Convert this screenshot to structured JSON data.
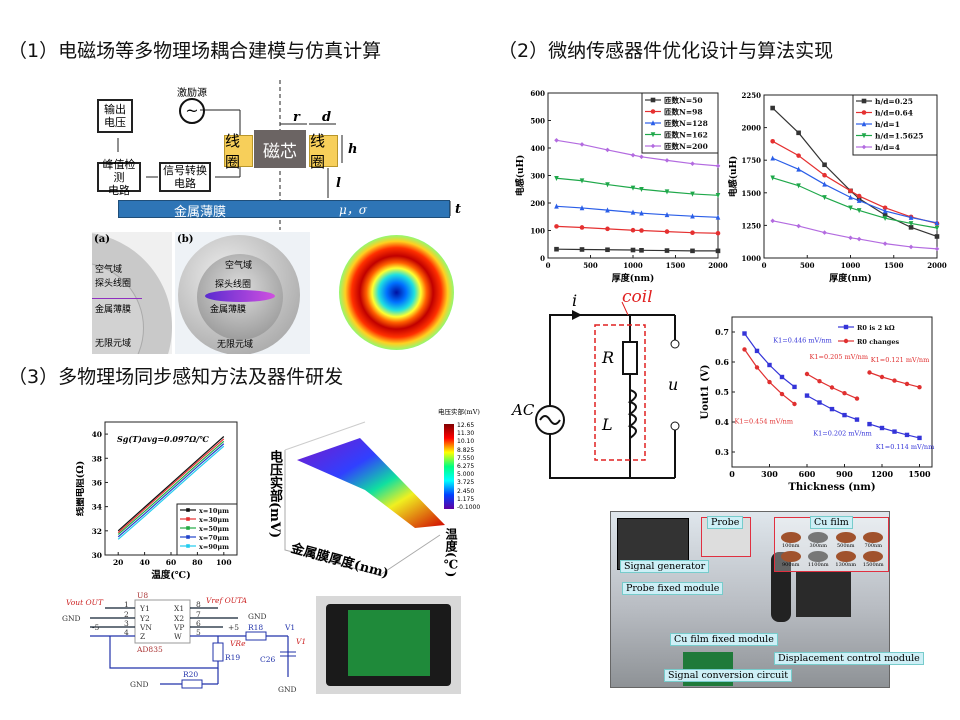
{
  "headings": {
    "s1": "（1）电磁场等多物理场耦合建模与仿真计算",
    "s2": "（2）微纳传感器件优化设计与算法实现",
    "s3": "（3）多物理场同步感知方法及器件研发"
  },
  "diagram1": {
    "source": "激励源",
    "output": "输出\n电压",
    "peak": "峰值检测\n电路",
    "signal": "信号转换\n电路",
    "coil": "线圈",
    "core": "磁芯",
    "film": "金属薄膜",
    "film_params": "μ，σ",
    "r": "r",
    "d": "d",
    "h": "h",
    "l": "l",
    "t": "t"
  },
  "sim": {
    "a": "(a)",
    "b": "(b)",
    "air": "空气域",
    "probe": "探头线圈",
    "film": "金属薄膜",
    "infinite": "无限元域"
  },
  "circuit": {
    "i": "i",
    "coil": "coil",
    "R": "R",
    "L": "L",
    "AC": "AC",
    "u": "u"
  },
  "surface3d": {
    "colorbar_title": "电压实部(mV)",
    "colorbar_ticks": [
      "12.65",
      "11.30",
      "10.10",
      "8.825",
      "7.550",
      "6.275",
      "5.000",
      "3.725",
      "2.450",
      "1.175",
      "-0.1000"
    ],
    "zlabel": "电压实部(mV)",
    "xlabel": "金属膜厚度(nm)",
    "ylabel": "温度(℃)"
  },
  "schematic": {
    "u8": "U8",
    "chip": "AD835",
    "pins_left": [
      "Y1",
      "Y2",
      "VN",
      "Z"
    ],
    "pins_right": [
      "X1",
      "X2",
      "VP",
      "W"
    ],
    "nums_left": [
      "1",
      "2",
      "3",
      "4"
    ],
    "nums_right": [
      "8",
      "7",
      "6",
      "5"
    ],
    "vout": "Vout OUT",
    "vref": "Vref OUTA",
    "gnd": "GND",
    "m5": "-5",
    "p5": "+5",
    "vre": "VRe",
    "r18": "R18",
    "r19": "R19",
    "r20": "R20",
    "c26": "C26",
    "v1": "V1",
    "V1": "V1"
  },
  "photo": {
    "labels": [
      "Signal generator",
      "Probe",
      "Cu film",
      "Probe fixed module",
      "Cu film fixed module",
      "Displacement control module",
      "Signal conversion circuit"
    ],
    "films": [
      "100nm",
      "300nm",
      "500nm",
      "700nm",
      "900nm",
      "1100nm",
      "1300nm",
      "1500nm"
    ]
  },
  "chart_data": [
    {
      "type": "line",
      "xlabel": "厚度(nm)",
      "ylabel": "电感(uH)",
      "xlim": [
        0,
        2000
      ],
      "ylim": [
        0,
        600
      ],
      "xticks": [
        0,
        500,
        1000,
        1500,
        2000
      ],
      "yticks": [
        0,
        100,
        200,
        300,
        400,
        500,
        600
      ],
      "legend": "top-right",
      "x": [
        100,
        400,
        700,
        1000,
        1100,
        1400,
        1700,
        2000
      ],
      "series": [
        {
          "name": "匝数N=50",
          "color": "#333333",
          "marker": "square",
          "values": [
            32,
            31,
            30,
            29,
            28,
            27,
            26,
            26
          ]
        },
        {
          "name": "匝数N=98",
          "color": "#e53030",
          "marker": "circle",
          "values": [
            115,
            111,
            106,
            101,
            100,
            96,
            92,
            90
          ]
        },
        {
          "name": "匝数N=128",
          "color": "#2a5ee8",
          "marker": "tri-up",
          "values": [
            188,
            182,
            174,
            166,
            163,
            157,
            152,
            148
          ]
        },
        {
          "name": "匝数N=162",
          "color": "#1fa84a",
          "marker": "tri-down",
          "values": [
            290,
            281,
            267,
            255,
            250,
            241,
            233,
            228
          ]
        },
        {
          "name": "匝数N=200",
          "color": "#b36be0",
          "marker": "diamond",
          "values": [
            428,
            413,
            393,
            374,
            368,
            355,
            343,
            335
          ]
        }
      ]
    },
    {
      "type": "line",
      "xlabel": "厚度(nm)",
      "ylabel": "电感(uH)",
      "xlim": [
        0,
        2000
      ],
      "ylim": [
        1000,
        2250
      ],
      "xticks": [
        0,
        500,
        1000,
        1500,
        2000
      ],
      "yticks": [
        1000,
        1250,
        1500,
        1750,
        2000,
        2250
      ],
      "legend": "top-right",
      "x": [
        100,
        400,
        700,
        1000,
        1100,
        1400,
        1700,
        2000
      ],
      "series": [
        {
          "name": "h/d=0.25",
          "color": "#333333",
          "marker": "square",
          "values": [
            2150,
            1960,
            1715,
            1515,
            1455,
            1330,
            1235,
            1165
          ]
        },
        {
          "name": "h/d=0.64",
          "color": "#e53030",
          "marker": "circle",
          "values": [
            1895,
            1785,
            1635,
            1515,
            1475,
            1385,
            1315,
            1265
          ]
        },
        {
          "name": "h/d=1",
          "color": "#2a5ee8",
          "marker": "tri-up",
          "values": [
            1765,
            1680,
            1565,
            1465,
            1440,
            1360,
            1310,
            1270
          ]
        },
        {
          "name": "h/d=1.5625",
          "color": "#1fa84a",
          "marker": "tri-down",
          "values": [
            1615,
            1555,
            1465,
            1385,
            1365,
            1305,
            1265,
            1230
          ]
        },
        {
          "name": "h/d=4",
          "color": "#b36be0",
          "marker": "diamond",
          "values": [
            1285,
            1245,
            1195,
            1155,
            1145,
            1110,
            1085,
            1070
          ]
        }
      ]
    },
    {
      "type": "line",
      "xlabel": "Thickness (nm)",
      "ylabel": "Uout1 (V)",
      "xlim": [
        0,
        1600
      ],
      "ylim": [
        0.25,
        0.75
      ],
      "xticks": [
        0,
        300,
        600,
        900,
        1200,
        1500
      ],
      "yticks": [
        0.3,
        0.4,
        0.5,
        0.6,
        0.7
      ],
      "legend": "top-right",
      "series": [
        {
          "name": "R0 is 2 kΩ",
          "color": "#3434d8",
          "marker": "square",
          "segments": [
            [
              [
                100,
                0.695
              ],
              [
                200,
                0.637
              ],
              [
                300,
                0.59
              ],
              [
                400,
                0.55
              ],
              [
                500,
                0.517
              ]
            ],
            [
              [
                600,
                0.488
              ],
              [
                700,
                0.465
              ],
              [
                800,
                0.443
              ],
              [
                900,
                0.423
              ],
              [
                1000,
                0.408
              ]
            ],
            [
              [
                1100,
                0.393
              ],
              [
                1200,
                0.38
              ],
              [
                1300,
                0.368
              ],
              [
                1400,
                0.357
              ],
              [
                1500,
                0.347
              ]
            ]
          ]
        },
        {
          "name": "R0 changes",
          "color": "#e03030",
          "marker": "circle",
          "segments": [
            [
              [
                100,
                0.642
              ],
              [
                200,
                0.582
              ],
              [
                300,
                0.533
              ],
              [
                400,
                0.493
              ],
              [
                500,
                0.46
              ]
            ],
            [
              [
                600,
                0.56
              ],
              [
                700,
                0.536
              ],
              [
                800,
                0.515
              ],
              [
                900,
                0.496
              ],
              [
                1000,
                0.478
              ]
            ],
            [
              [
                1100,
                0.565
              ],
              [
                1200,
                0.55
              ],
              [
                1300,
                0.538
              ],
              [
                1400,
                0.527
              ],
              [
                1500,
                0.516
              ]
            ]
          ]
        }
      ],
      "annotations": [
        {
          "text": "K1=0.446 mV/nm",
          "color": "#3434d8",
          "x": 330,
          "y": 0.665
        },
        {
          "text": "K1=0.454 mV/nm",
          "color": "#e03030",
          "x": 20,
          "y": 0.395
        },
        {
          "text": "K1=0.205 mV/nm",
          "color": "#e03030",
          "x": 620,
          "y": 0.61
        },
        {
          "text": "K1=0.202 mV/nm",
          "color": "#3434d8",
          "x": 650,
          "y": 0.355
        },
        {
          "text": "K1=0.121 mV/nm",
          "color": "#e03030",
          "x": 1110,
          "y": 0.6
        },
        {
          "text": "K1=0.114 mV/nm",
          "color": "#3434d8",
          "x": 1150,
          "y": 0.31
        }
      ]
    },
    {
      "type": "line",
      "xlabel": "温度(℃)",
      "ylabel": "线圈电阻(Ω)",
      "xlim": [
        10,
        110
      ],
      "ylim": [
        30,
        41
      ],
      "xticks": [
        20,
        40,
        60,
        80,
        100
      ],
      "yticks": [
        30,
        32,
        34,
        36,
        38,
        40
      ],
      "legend": "bottom-right",
      "annotation": "Sg(T)avg=0.097Ω/℃",
      "x": [
        20,
        40,
        60,
        80,
        100
      ],
      "series": [
        {
          "name": "x=10μm",
          "color": "#111111",
          "values": [
            32.0,
            33.95,
            35.9,
            37.85,
            39.8
          ]
        },
        {
          "name": "x=30μm",
          "color": "#e53030",
          "values": [
            31.85,
            33.8,
            35.75,
            37.7,
            39.6
          ]
        },
        {
          "name": "x=50μm",
          "color": "#22aa44",
          "values": [
            31.7,
            33.6,
            35.55,
            37.5,
            39.4
          ]
        },
        {
          "name": "x=70μm",
          "color": "#2244cc",
          "values": [
            31.5,
            33.4,
            35.35,
            37.3,
            39.2
          ]
        },
        {
          "name": "x=90μm",
          "color": "#22ccee",
          "values": [
            31.3,
            33.2,
            35.15,
            37.1,
            39.0
          ]
        }
      ]
    }
  ]
}
